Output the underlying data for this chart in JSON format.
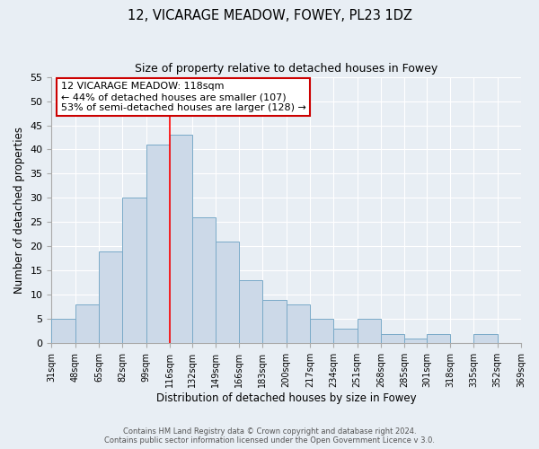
{
  "title": "12, VICARAGE MEADOW, FOWEY, PL23 1DZ",
  "subtitle": "Size of property relative to detached houses in Fowey",
  "xlabel": "Distribution of detached houses by size in Fowey",
  "ylabel": "Number of detached properties",
  "bin_edges": [
    31,
    48,
    65,
    82,
    99,
    116,
    132,
    149,
    166,
    183,
    200,
    217,
    234,
    251,
    268,
    285,
    301,
    318,
    335,
    352,
    369
  ],
  "bar_heights": [
    5,
    8,
    19,
    30,
    41,
    43,
    26,
    21,
    13,
    9,
    8,
    5,
    3,
    5,
    2,
    1,
    2,
    0,
    2,
    0
  ],
  "xtick_labels": [
    "31sqm",
    "48sqm",
    "65sqm",
    "82sqm",
    "99sqm",
    "116sqm",
    "132sqm",
    "149sqm",
    "166sqm",
    "183sqm",
    "200sqm",
    "217sqm",
    "234sqm",
    "251sqm",
    "268sqm",
    "285sqm",
    "301sqm",
    "318sqm",
    "335sqm",
    "352sqm",
    "369sqm"
  ],
  "bar_color": "#ccd9e8",
  "bar_edge_color": "#7aaac8",
  "red_line_x": 116,
  "ylim": [
    0,
    55
  ],
  "yticks": [
    0,
    5,
    10,
    15,
    20,
    25,
    30,
    35,
    40,
    45,
    50,
    55
  ],
  "annotation_title": "12 VICARAGE MEADOW: 118sqm",
  "annotation_line1": "← 44% of detached houses are smaller (107)",
  "annotation_line2": "53% of semi-detached houses are larger (128) →",
  "footer1": "Contains HM Land Registry data © Crown copyright and database right 2024.",
  "footer2": "Contains public sector information licensed under the Open Government Licence v 3.0.",
  "background_color": "#e8eef4",
  "grid_color": "#ffffff"
}
